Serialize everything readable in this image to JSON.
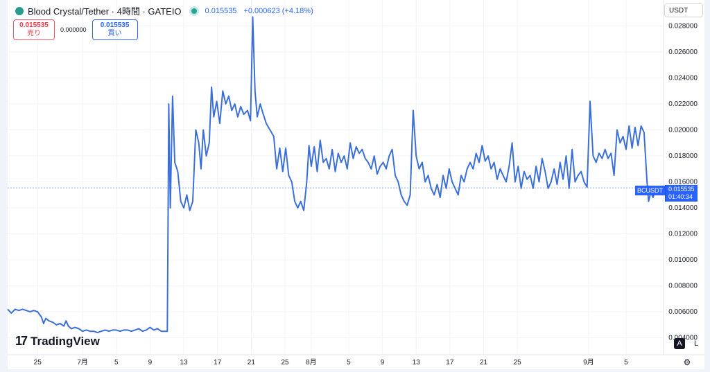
{
  "header": {
    "title": "Blood Crystal/Tether · 4時間 · GATEIO",
    "price": "0.015535",
    "change": "+0.000623 (+4.18%)"
  },
  "trade": {
    "sell_price": "0.015535",
    "sell_label": "売り",
    "spread": "0.000000",
    "buy_price": "0.015535",
    "buy_label": "買い"
  },
  "currency_select": "USDT",
  "price_tag": {
    "symbol": "BCUSDT",
    "price": "0.015535",
    "countdown": "01:40:34"
  },
  "branding": "TradingView",
  "scale_buttons": {
    "auto": "A",
    "log": "L"
  },
  "colors": {
    "line": "#3b6fd8",
    "accent": "#2962ff",
    "sell": "#f23645",
    "grid": "#f0f3fa"
  },
  "chart_data": {
    "type": "line",
    "title": "Blood Crystal/Tether · 4時間 · GATEIO",
    "y_ticks": [
      "0.004000",
      "0.006000",
      "0.008000",
      "0.010000",
      "0.012000",
      "0.014000",
      "0.016000",
      "0.018000",
      "0.020000",
      "0.022000",
      "0.024000",
      "0.026000",
      "0.028000"
    ],
    "ylim": [
      0.0027,
      0.03
    ],
    "x_ticks": [
      {
        "label": "25",
        "pos": 13.5
      },
      {
        "label": "7月",
        "pos": 19.5
      },
      {
        "label": "5",
        "pos": 24
      },
      {
        "label": "9",
        "pos": 28.5
      },
      {
        "label": "13",
        "pos": 33
      },
      {
        "label": "17",
        "pos": 37.5
      },
      {
        "label": "21",
        "pos": 42
      },
      {
        "label": "25",
        "pos": 46.5
      },
      {
        "label": "8月",
        "pos": 50
      },
      {
        "label": "5",
        "pos": 55
      },
      {
        "label": "9",
        "pos": 59.5
      },
      {
        "label": "13",
        "pos": 64
      },
      {
        "label": "17",
        "pos": 68.5
      },
      {
        "label": "21",
        "pos": 73
      },
      {
        "label": "25",
        "pos": 77.5
      },
      {
        "label": "9月",
        "pos": 87
      },
      {
        "label": "5",
        "pos": 92
      }
    ],
    "xlim": [
      9.5,
      97
    ],
    "grid": true,
    "series": [
      {
        "values": [
          [
            9.5,
            0.0062
          ],
          [
            10,
            0.0059
          ],
          [
            10.5,
            0.0062
          ],
          [
            11,
            0.0061
          ],
          [
            11.5,
            0.0062
          ],
          [
            12,
            0.0061
          ],
          [
            12.5,
            0.006
          ],
          [
            13,
            0.0061
          ],
          [
            13.5,
            0.006
          ],
          [
            14,
            0.0056
          ],
          [
            14.3,
            0.0051
          ],
          [
            14.6,
            0.0055
          ],
          [
            15,
            0.0053
          ],
          [
            15.5,
            0.0052
          ],
          [
            16,
            0.005
          ],
          [
            16.5,
            0.0051
          ],
          [
            17,
            0.0049
          ],
          [
            17.3,
            0.0053
          ],
          [
            17.6,
            0.0049
          ],
          [
            18,
            0.0047
          ],
          [
            18.5,
            0.0048
          ],
          [
            19,
            0.0047
          ],
          [
            19.5,
            0.0045
          ],
          [
            20,
            0.0046
          ],
          [
            20.5,
            0.0045
          ],
          [
            21,
            0.0045
          ],
          [
            21.5,
            0.0044
          ],
          [
            22,
            0.0045
          ],
          [
            22.5,
            0.0046
          ],
          [
            23,
            0.0045
          ],
          [
            23.5,
            0.0046
          ],
          [
            24,
            0.0046
          ],
          [
            24.5,
            0.0045
          ],
          [
            25,
            0.0046
          ],
          [
            25.5,
            0.0046
          ],
          [
            26,
            0.0045
          ],
          [
            26.5,
            0.0046
          ],
          [
            27,
            0.0047
          ],
          [
            27.5,
            0.0045
          ],
          [
            28,
            0.0046
          ],
          [
            28.5,
            0.0048
          ],
          [
            29,
            0.0046
          ],
          [
            29.5,
            0.0047
          ],
          [
            30,
            0.0045
          ],
          [
            30.5,
            0.0045
          ],
          [
            30.8,
            0.0045
          ],
          [
            30.9,
            0.013
          ],
          [
            31,
            0.022
          ],
          [
            31.2,
            0.014
          ],
          [
            31.5,
            0.0226
          ],
          [
            31.8,
            0.0175
          ],
          [
            32.2,
            0.0168
          ],
          [
            32.6,
            0.0145
          ],
          [
            33,
            0.014
          ],
          [
            33.4,
            0.015
          ],
          [
            33.8,
            0.0138
          ],
          [
            34.2,
            0.0145
          ],
          [
            34.6,
            0.02
          ],
          [
            35,
            0.019
          ],
          [
            35.3,
            0.017
          ],
          [
            35.6,
            0.02
          ],
          [
            36,
            0.018
          ],
          [
            36.4,
            0.019
          ],
          [
            36.7,
            0.0233
          ],
          [
            37,
            0.021
          ],
          [
            37.4,
            0.0222
          ],
          [
            37.8,
            0.0205
          ],
          [
            38.2,
            0.023
          ],
          [
            38.6,
            0.022
          ],
          [
            39,
            0.0226
          ],
          [
            39.4,
            0.0215
          ],
          [
            39.8,
            0.022
          ],
          [
            40.2,
            0.021
          ],
          [
            40.6,
            0.0218
          ],
          [
            41,
            0.0212
          ],
          [
            41.5,
            0.0215
          ],
          [
            41.9,
            0.0207
          ],
          [
            42.2,
            0.0287
          ],
          [
            42.5,
            0.023
          ],
          [
            42.8,
            0.021
          ],
          [
            43.2,
            0.022
          ],
          [
            43.6,
            0.0212
          ],
          [
            44,
            0.0205
          ],
          [
            44.5,
            0.02
          ],
          [
            45,
            0.0195
          ],
          [
            45.4,
            0.017
          ],
          [
            45.8,
            0.0186
          ],
          [
            46.2,
            0.0168
          ],
          [
            46.6,
            0.0186
          ],
          [
            47,
            0.0165
          ],
          [
            47.4,
            0.016
          ],
          [
            47.8,
            0.0145
          ],
          [
            48.2,
            0.014
          ],
          [
            48.6,
            0.0145
          ],
          [
            49,
            0.0138
          ],
          [
            49.4,
            0.016
          ],
          [
            49.7,
            0.0188
          ],
          [
            50,
            0.0172
          ],
          [
            50.4,
            0.0187
          ],
          [
            50.8,
            0.0168
          ],
          [
            51.2,
            0.0192
          ],
          [
            51.6,
            0.0175
          ],
          [
            52,
            0.0178
          ],
          [
            52.4,
            0.017
          ],
          [
            52.8,
            0.0185
          ],
          [
            53.2,
            0.0168
          ],
          [
            53.6,
            0.0182
          ],
          [
            54,
            0.0175
          ],
          [
            54.4,
            0.018
          ],
          [
            54.8,
            0.017
          ],
          [
            55.2,
            0.019
          ],
          [
            55.6,
            0.0178
          ],
          [
            56,
            0.0187
          ],
          [
            56.4,
            0.0182
          ],
          [
            56.8,
            0.0185
          ],
          [
            57.2,
            0.0178
          ],
          [
            57.6,
            0.0175
          ],
          [
            58,
            0.017
          ],
          [
            58.4,
            0.018
          ],
          [
            58.8,
            0.0166
          ],
          [
            59.2,
            0.0172
          ],
          [
            59.6,
            0.0175
          ],
          [
            60,
            0.017
          ],
          [
            60.4,
            0.018
          ],
          [
            60.8,
            0.0185
          ],
          [
            61.2,
            0.0165
          ],
          [
            61.6,
            0.016
          ],
          [
            62,
            0.015
          ],
          [
            62.4,
            0.0145
          ],
          [
            62.8,
            0.0142
          ],
          [
            63.2,
            0.015
          ],
          [
            63.6,
            0.0215
          ],
          [
            64,
            0.018
          ],
          [
            64.4,
            0.017
          ],
          [
            64.8,
            0.0175
          ],
          [
            65.2,
            0.016
          ],
          [
            65.6,
            0.0165
          ],
          [
            66,
            0.0155
          ],
          [
            66.4,
            0.015
          ],
          [
            66.8,
            0.0158
          ],
          [
            67.2,
            0.0148
          ],
          [
            67.6,
            0.0165
          ],
          [
            68,
            0.0155
          ],
          [
            68.4,
            0.017
          ],
          [
            68.8,
            0.016
          ],
          [
            69.2,
            0.0155
          ],
          [
            69.6,
            0.015
          ],
          [
            70,
            0.0165
          ],
          [
            70.4,
            0.016
          ],
          [
            70.8,
            0.017
          ],
          [
            71.2,
            0.0175
          ],
          [
            71.6,
            0.017
          ],
          [
            72,
            0.0182
          ],
          [
            72.4,
            0.0175
          ],
          [
            72.8,
            0.0188
          ],
          [
            73.2,
            0.0176
          ],
          [
            73.6,
            0.018
          ],
          [
            74,
            0.017
          ],
          [
            74.4,
            0.0175
          ],
          [
            74.8,
            0.0162
          ],
          [
            75.2,
            0.017
          ],
          [
            75.6,
            0.0165
          ],
          [
            76,
            0.016
          ],
          [
            76.4,
            0.0172
          ],
          [
            76.8,
            0.019
          ],
          [
            77.2,
            0.016
          ],
          [
            77.6,
            0.0172
          ],
          [
            78,
            0.0155
          ],
          [
            78.4,
            0.0168
          ],
          [
            78.8,
            0.0162
          ],
          [
            79.2,
            0.0165
          ],
          [
            79.6,
            0.0155
          ],
          [
            80,
            0.0172
          ],
          [
            80.4,
            0.016
          ],
          [
            80.8,
            0.0178
          ],
          [
            81.2,
            0.0168
          ],
          [
            81.6,
            0.0155
          ],
          [
            82,
            0.016
          ],
          [
            82.4,
            0.017
          ],
          [
            82.8,
            0.0158
          ],
          [
            83.2,
            0.0175
          ],
          [
            83.6,
            0.0162
          ],
          [
            84,
            0.018
          ],
          [
            84.4,
            0.0155
          ],
          [
            84.8,
            0.0185
          ],
          [
            85.2,
            0.016
          ],
          [
            85.6,
            0.0165
          ],
          [
            86,
            0.0168
          ],
          [
            86.4,
            0.016
          ],
          [
            86.8,
            0.0156
          ],
          [
            87.2,
            0.0222
          ],
          [
            87.6,
            0.018
          ],
          [
            88,
            0.0175
          ],
          [
            88.4,
            0.0182
          ],
          [
            88.8,
            0.0178
          ],
          [
            89.2,
            0.0185
          ],
          [
            89.6,
            0.0178
          ],
          [
            90,
            0.0182
          ],
          [
            90.4,
            0.0165
          ],
          [
            90.8,
            0.02
          ],
          [
            91.2,
            0.019
          ],
          [
            91.6,
            0.0195
          ],
          [
            92,
            0.0185
          ],
          [
            92.4,
            0.0203
          ],
          [
            92.8,
            0.0186
          ],
          [
            93.2,
            0.0202
          ],
          [
            93.6,
            0.0188
          ],
          [
            94,
            0.0203
          ],
          [
            94.4,
            0.0198
          ],
          [
            94.8,
            0.016
          ],
          [
            95,
            0.0145
          ],
          [
            95.3,
            0.0152
          ],
          [
            95.6,
            0.0148
          ],
          [
            96,
            0.0156
          ],
          [
            96.3,
            0.0152
          ],
          [
            96.6,
            0.0155
          ]
        ]
      }
    ],
    "last_price": 0.015535
  }
}
